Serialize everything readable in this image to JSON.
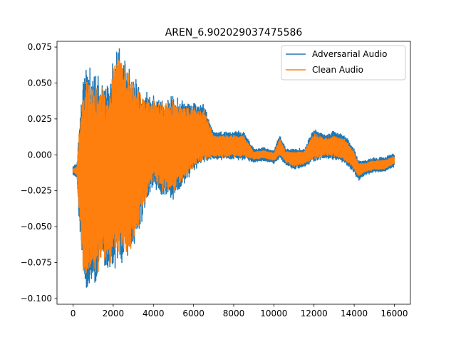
{
  "chart_data": {
    "type": "line",
    "title": "AREN_6.902029037475586",
    "xlabel": "",
    "ylabel": "",
    "xlim": [
      -800,
      16800
    ],
    "ylim": [
      -0.104,
      0.079
    ],
    "xticks": [
      0,
      2000,
      4000,
      6000,
      8000,
      10000,
      12000,
      14000,
      16000
    ],
    "yticks": [
      -0.1,
      -0.075,
      -0.05,
      -0.025,
      0.0,
      0.025,
      0.05,
      0.075
    ],
    "xtick_labels": [
      "0",
      "2000",
      "4000",
      "6000",
      "8000",
      "10000",
      "12000",
      "14000",
      "16000"
    ],
    "ytick_labels": [
      "−0.100",
      "−0.075",
      "−0.050",
      "−0.025",
      "0.000",
      "0.025",
      "0.050",
      "0.075"
    ],
    "legend_position": "upper right",
    "grid": false,
    "series": [
      {
        "name": "Adversarial Audio",
        "color": "#1f77b4",
        "envelope": {
          "x": [
            0,
            200,
            300,
            600,
            800,
            1000,
            1200,
            1500,
            1800,
            2000,
            2300,
            2500,
            2800,
            3000,
            3500,
            4000,
            4500,
            5000,
            5500,
            6000,
            6500,
            7000,
            7500,
            8000,
            8500,
            9000,
            9500,
            10000,
            10300,
            10600,
            11000,
            11500,
            12000,
            12500,
            13000,
            13500,
            14000,
            14200,
            14500,
            15000,
            15500,
            16000
          ],
          "upper": [
            -0.008,
            -0.006,
            0.018,
            0.06,
            0.056,
            0.055,
            0.05,
            0.048,
            0.05,
            0.063,
            0.076,
            0.065,
            0.058,
            0.053,
            0.043,
            0.04,
            0.038,
            0.04,
            0.036,
            0.035,
            0.035,
            0.016,
            0.016,
            0.016,
            0.016,
            0.004,
            0.005,
            0.003,
            0.014,
            0.004,
            0.004,
            0.004,
            0.018,
            0.014,
            0.016,
            0.014,
            0.004,
            -0.004,
            -0.004,
            -0.002,
            -0.002,
            0.001
          ],
          "lower": [
            -0.014,
            -0.016,
            -0.045,
            -0.092,
            -0.085,
            -0.09,
            -0.085,
            -0.077,
            -0.082,
            -0.075,
            -0.071,
            -0.073,
            -0.068,
            -0.063,
            -0.04,
            -0.022,
            -0.028,
            -0.03,
            -0.02,
            -0.01,
            -0.005,
            -0.003,
            -0.003,
            -0.003,
            -0.003,
            -0.005,
            -0.004,
            -0.006,
            -0.002,
            -0.007,
            -0.01,
            -0.008,
            -0.005,
            -0.002,
            -0.003,
            -0.005,
            -0.012,
            -0.018,
            -0.014,
            -0.012,
            -0.012,
            -0.008
          ]
        }
      },
      {
        "name": "Clean Audio",
        "color": "#ff7f0e",
        "envelope": {
          "x": [
            0,
            200,
            300,
            600,
            800,
            1000,
            1200,
            1500,
            1800,
            2000,
            2300,
            2500,
            2800,
            3000,
            3500,
            4000,
            4500,
            5000,
            5500,
            6000,
            6500,
            7000,
            7500,
            8000,
            8500,
            9000,
            9500,
            10000,
            10300,
            10600,
            11000,
            11500,
            12000,
            12500,
            13000,
            13500,
            14000,
            14200,
            14500,
            15000,
            15500,
            16000
          ],
          "upper": [
            -0.01,
            -0.008,
            0.014,
            0.052,
            0.048,
            0.05,
            0.045,
            0.044,
            0.046,
            0.058,
            0.07,
            0.062,
            0.055,
            0.05,
            0.04,
            0.037,
            0.035,
            0.037,
            0.033,
            0.032,
            0.032,
            0.013,
            0.013,
            0.013,
            0.013,
            0.002,
            0.003,
            0.001,
            0.011,
            0.002,
            0.002,
            0.002,
            0.015,
            0.011,
            0.013,
            0.011,
            0.002,
            -0.006,
            -0.006,
            -0.004,
            -0.004,
            -0.001
          ],
          "lower": [
            -0.012,
            -0.014,
            -0.04,
            -0.096,
            -0.08,
            -0.086,
            -0.08,
            -0.072,
            -0.076,
            -0.068,
            -0.066,
            -0.068,
            -0.064,
            -0.06,
            -0.036,
            -0.018,
            -0.024,
            -0.026,
            -0.017,
            -0.008,
            -0.003,
            -0.001,
            -0.001,
            -0.001,
            -0.001,
            -0.003,
            -0.002,
            -0.004,
            0.0,
            -0.005,
            -0.008,
            -0.006,
            -0.003,
            0.0,
            -0.001,
            -0.003,
            -0.01,
            -0.015,
            -0.012,
            -0.01,
            -0.01,
            -0.006
          ]
        }
      }
    ]
  }
}
